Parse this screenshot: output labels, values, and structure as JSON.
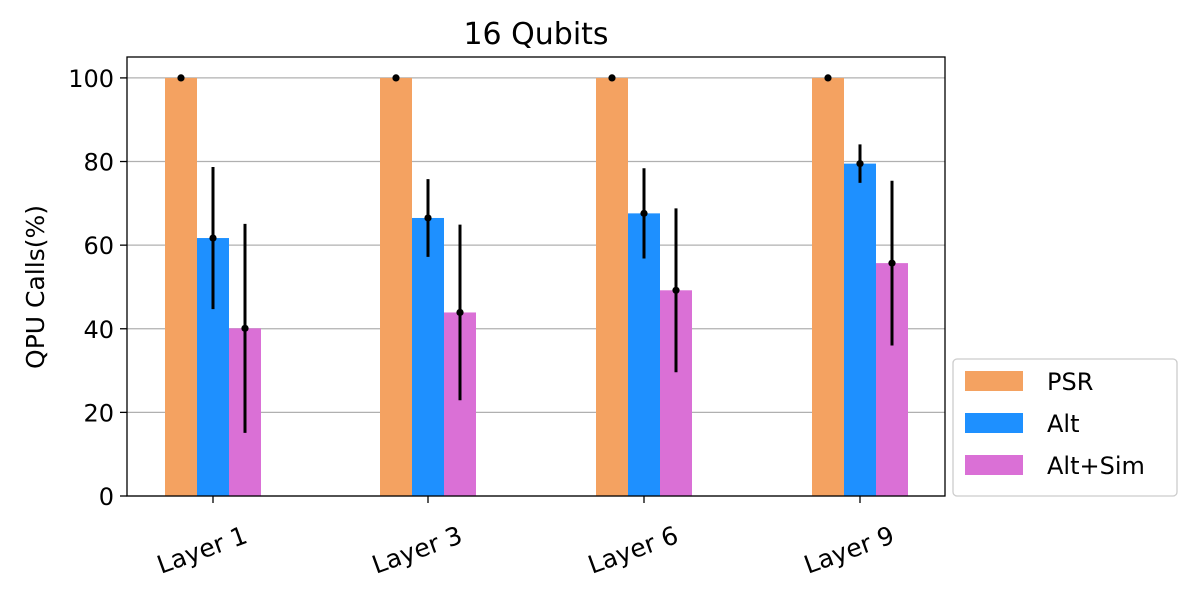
{
  "chart_data": {
    "type": "bar",
    "title": "16 Qubits",
    "xlabel": "",
    "ylabel": "QPU Calls(%)",
    "categories": [
      "Layer 1",
      "Layer 3",
      "Layer 6",
      "Layer 9"
    ],
    "ylim": [
      0,
      105
    ],
    "yticks": [
      0,
      20,
      40,
      60,
      80,
      100
    ],
    "grid": "horizontal",
    "legend_position": "outside-right",
    "series": [
      {
        "name": "PSR",
        "color": "#F4A261",
        "values": [
          100,
          100,
          100,
          100
        ],
        "err": [
          0,
          0,
          0,
          0
        ]
      },
      {
        "name": "Alt",
        "color": "#1E90FF",
        "values": [
          61.7,
          66.5,
          67.6,
          79.5
        ],
        "err": [
          17,
          9.3,
          10.8,
          4.6
        ]
      },
      {
        "name": "Alt+Sim",
        "color": "#DA70D6",
        "values": [
          40.1,
          43.9,
          49.2,
          55.7
        ],
        "err": [
          25,
          21,
          19.6,
          19.7
        ]
      }
    ]
  }
}
